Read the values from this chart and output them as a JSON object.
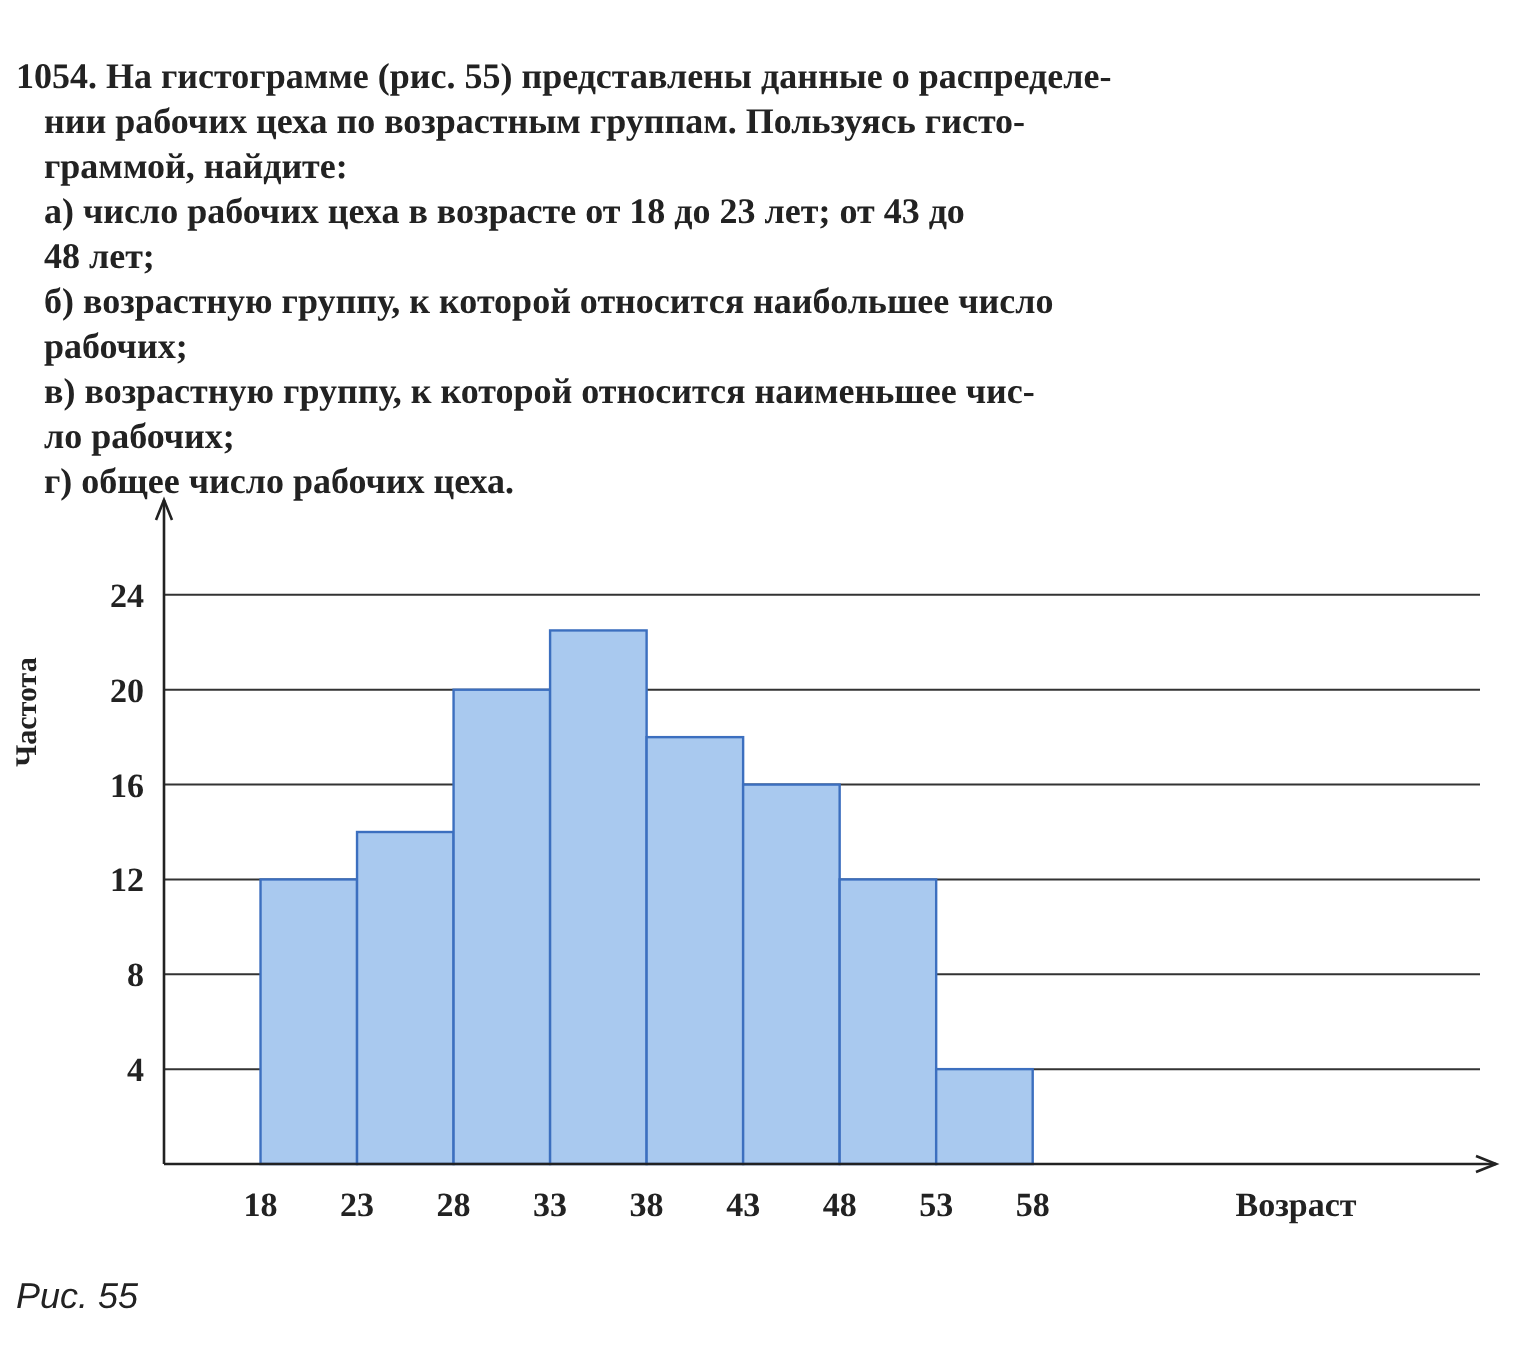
{
  "chart_data": {
    "type": "histogram",
    "xlabel": "Возраст",
    "ylabel": "Частота",
    "bins": [
      18,
      23,
      28,
      33,
      38,
      43,
      48,
      53,
      58
    ],
    "values": [
      12,
      14,
      20,
      22.5,
      18,
      16,
      12,
      4
    ],
    "color": "#a9c9ef",
    "xlim": [
      13,
      82
    ],
    "xticks": [
      18,
      23,
      28,
      33,
      38,
      43,
      48,
      53,
      58
    ],
    "ylim": [
      0,
      28
    ],
    "yticks": [
      4,
      8,
      12,
      16,
      20,
      24
    ],
    "grid": "y",
    "annotations": [
      "1054. На гистограмме (рис. 55) представлены данные о распределе-",
      "нии рабочих цеха по возрастным группам. Пользуясь гисто-",
      "граммой, найдите:",
      "а) число рабочих цеха в возрасте от 18 до 23 лет; от 43 до",
      "48 лет;",
      "б) возрастную группу, к которой относится наибольшее число",
      "рабочих;",
      "в) возрастную группу, к которой относится наименьшее чис-",
      "ло рабочих;",
      "г) общее число рабочих цеха.",
      "Рис. 55"
    ]
  }
}
